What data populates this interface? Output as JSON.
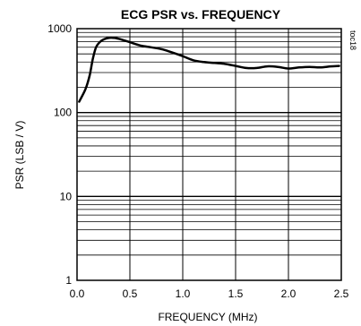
{
  "chart_data": {
    "type": "line",
    "title": "ECG PSR vs. FREQUENCY",
    "xlabel": "FREQUENCY (MHz)",
    "ylabel": "PSR (LSB / V)",
    "annotation": "toc18",
    "xlim": [
      0,
      2.5
    ],
    "ylim": [
      1,
      1000
    ],
    "yscale": "log",
    "grid": true,
    "x_ticks": [
      "0.0",
      "0.5",
      "1.0",
      "1.5",
      "2.0",
      "2.5"
    ],
    "y_ticks": [
      "1",
      "10",
      "100",
      "1000"
    ],
    "series": [
      {
        "x": [
          0.02,
          0.08,
          0.12,
          0.15,
          0.18,
          0.22,
          0.27,
          0.32,
          0.37,
          0.42,
          0.5,
          0.6,
          0.7,
          0.8,
          0.9,
          1.0,
          1.1,
          1.2,
          1.3,
          1.4,
          1.5,
          1.6,
          1.7,
          1.8,
          1.9,
          2.0,
          2.1,
          2.2,
          2.3,
          2.4,
          2.48
        ],
        "y": [
          135,
          190,
          280,
          440,
          600,
          700,
          760,
          780,
          770,
          740,
          690,
          630,
          600,
          570,
          520,
          470,
          420,
          400,
          390,
          380,
          360,
          340,
          340,
          355,
          350,
          335,
          345,
          350,
          345,
          355,
          360
        ]
      }
    ]
  }
}
